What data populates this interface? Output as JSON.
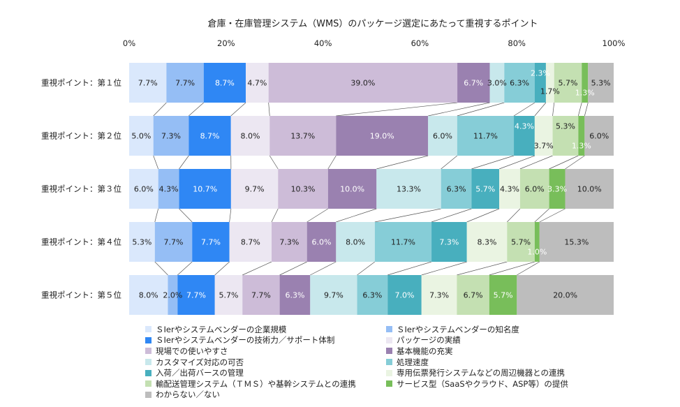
{
  "chart_data": {
    "type": "bar",
    "orientation": "horizontal",
    "stacked": "percent",
    "title": "倉庫・在庫管理システム（WMS）のパッケージ選定にあたって重視するポイント",
    "x_ticks": [
      "0%",
      "20%",
      "40%",
      "60%",
      "80%",
      "100%"
    ],
    "xlim": [
      0,
      100
    ],
    "categories": [
      "重視ポイント：第１位",
      "重視ポイント：第２位",
      "重視ポイント：第３位",
      "重視ポイント：第４位",
      "重視ポイント：第５位"
    ],
    "legend_position": "bottom",
    "series": [
      {
        "name": "ＳIerやシステムベンダーの企業規模",
        "color": "#DAE8FC",
        "values": [
          7.7,
          5.0,
          6.0,
          5.3,
          8.0
        ],
        "labels": [
          "7.7%",
          "5.0%",
          "6.0%",
          "5.3%",
          "8.0%"
        ],
        "label_color": "#222222"
      },
      {
        "name": "ＳIerやシステムベンダーの知名度",
        "color": "#95BEF5",
        "values": [
          7.7,
          7.3,
          4.3,
          7.7,
          2.0
        ],
        "labels": [
          "7.7%",
          "7.3%",
          "4.3%",
          "7.7%",
          "2.0%"
        ],
        "label_color": "#222222"
      },
      {
        "name": "ＳIerやシステムベンダーの技術力／サポート体制",
        "color": "#2F87F4",
        "values": [
          8.7,
          8.7,
          10.7,
          7.7,
          7.7
        ],
        "labels": [
          "8.7%",
          "8.7%",
          "10.7%",
          "7.7%",
          "7.7%"
        ],
        "label_color": "#FFFFFF"
      },
      {
        "name": "パッケージの実績",
        "color": "#ECE7F2",
        "values": [
          4.7,
          8.0,
          9.7,
          8.7,
          5.7
        ],
        "labels": [
          "4.7%",
          "8.0%",
          "9.7%",
          "8.7%",
          "5.7%"
        ],
        "label_color": "#222222"
      },
      {
        "name": "現場での使いやすさ",
        "color": "#CDBCD8",
        "values": [
          39.0,
          13.7,
          10.3,
          7.3,
          7.7
        ],
        "labels": [
          "39.0%",
          "13.7%",
          "10.3%",
          "7.3%",
          "7.7%"
        ],
        "label_color": "#222222"
      },
      {
        "name": "基本機能の充実",
        "color": "#9A81B0",
        "values": [
          6.7,
          19.0,
          10.0,
          6.0,
          6.3
        ],
        "labels": [
          "6.7%",
          "19.0%",
          "10.0%",
          "6.0%",
          "6.3%"
        ],
        "label_color": "#FFFFFF"
      },
      {
        "name": "カスタマイズ対応の可否",
        "color": "#C8E8EC",
        "values": [
          3.0,
          6.0,
          13.3,
          8.0,
          9.7
        ],
        "labels": [
          "3.0%",
          "6.0%",
          "13.3%",
          "8.0%",
          "9.7%"
        ],
        "label_color": "#222222"
      },
      {
        "name": "処理速度",
        "color": "#86CDD7",
        "values": [
          6.3,
          11.7,
          6.3,
          11.7,
          6.3
        ],
        "labels": [
          "6.3%",
          "11.7%",
          "6.3%",
          "11.7%",
          "6.3%"
        ],
        "label_color": "#222222"
      },
      {
        "name": "入荷／出荷バースの管理",
        "color": "#48AFBE",
        "values": [
          2.3,
          4.3,
          5.7,
          7.3,
          7.0
        ],
        "labels": [
          "2.3%",
          "4.3%",
          "5.7%",
          "7.3%",
          "7.0%"
        ],
        "label_color": "#FFFFFF"
      },
      {
        "name": "専用伝票発行システムなどの周辺機器との連携",
        "color": "#EAF4E2",
        "values": [
          1.7,
          3.7,
          4.3,
          8.3,
          7.3
        ],
        "labels": [
          "1.7%",
          "3.7%",
          "4.3%",
          "8.3%",
          "7.3%"
        ],
        "label_color": "#222222"
      },
      {
        "name": "輸配送管理システム（ＴＭＳ）や基幹システムとの連携",
        "color": "#C4E0B2",
        "values": [
          5.7,
          5.3,
          6.0,
          5.7,
          6.7
        ],
        "labels": [
          "5.7%",
          "5.3%",
          "6.0%",
          "5.7%",
          "6.7%"
        ],
        "label_color": "#222222"
      },
      {
        "name": "サービス型（SaaSやクラウド、ASP等）の提供",
        "color": "#78BE5A",
        "values": [
          1.3,
          1.3,
          3.3,
          1.0,
          5.7
        ],
        "labels": [
          "1.3%",
          "1.3%",
          "3.3%",
          "1.0%",
          "5.7%"
        ],
        "label_color": "#FFFFFF"
      },
      {
        "name": "わからない／ない",
        "color": "#BDBDBD",
        "values": [
          5.3,
          6.0,
          10.0,
          15.3,
          20.0
        ],
        "labels": [
          "5.3%",
          "6.0%",
          "10.0%",
          "15.3%",
          "20.0%"
        ],
        "label_color": "#222222"
      }
    ]
  }
}
